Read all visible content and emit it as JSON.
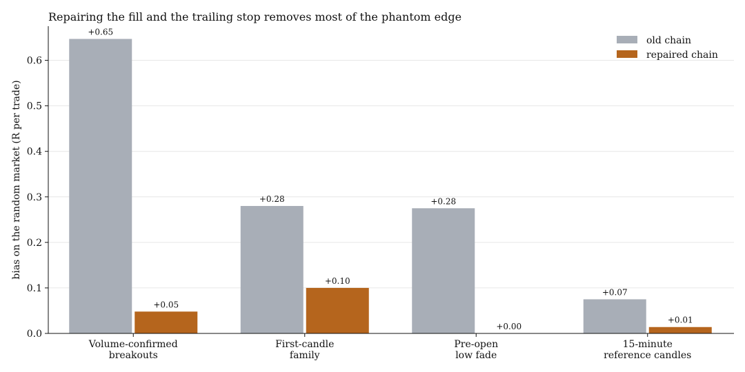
{
  "chart_data": {
    "type": "bar",
    "title": "Repairing the fill and the trailing stop removes most of the phantom edge",
    "xlabel": "",
    "ylabel": "bias on the random market (R per trade)",
    "categories": [
      [
        "Volume-confirmed",
        "breakouts"
      ],
      [
        "First-candle",
        "family"
      ],
      [
        "Pre-open",
        "low fade"
      ],
      [
        "15-minute",
        "reference candles"
      ]
    ],
    "series": [
      {
        "name": "old chain",
        "color": "#a8aeb7",
        "values": [
          0.647,
          0.28,
          0.275,
          0.075
        ],
        "labels": [
          "+0.65",
          "+0.28",
          "+0.28",
          "+0.07"
        ]
      },
      {
        "name": "repaired chain",
        "color": "#b5651d",
        "values": [
          0.048,
          0.1,
          0.0,
          0.014
        ],
        "labels": [
          "+0.05",
          "+0.10",
          "+0.00",
          "+0.01"
        ]
      }
    ],
    "ylim": [
      0,
      0.675
    ],
    "yticks": [
      0.0,
      0.1,
      0.2,
      0.3,
      0.4,
      0.5,
      0.6
    ],
    "ytick_labels": [
      "0.0",
      "0.1",
      "0.2",
      "0.3",
      "0.4",
      "0.5",
      "0.6"
    ],
    "grid": "horizontal",
    "legend_position": "top-right"
  }
}
